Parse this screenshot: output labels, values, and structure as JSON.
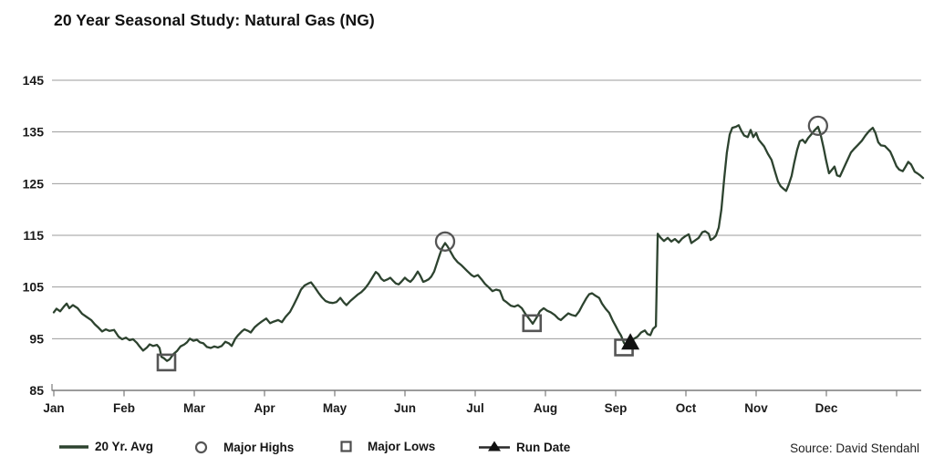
{
  "title": "20 Year Seasonal Study: Natural Gas (NG)",
  "source": "Source: David Stendahl",
  "legend": [
    {
      "label": "20 Yr. Avg",
      "marker": "line"
    },
    {
      "label": "Major Highs",
      "marker": "circle"
    },
    {
      "label": "Major Lows",
      "marker": "square"
    },
    {
      "label": "Run Date",
      "marker": "triangle"
    }
  ],
  "colors": {
    "line": "#2d432f",
    "grid": "#9b9b9b",
    "axis": "#7a7a7a",
    "text": "#1a1a1a",
    "marker_outline": "#555555",
    "run_date": "#111111"
  },
  "chart_data": {
    "type": "line",
    "title": "20 Year Seasonal Study: Natural Gas (NG)",
    "xlabel": "",
    "ylabel": "",
    "ylim": [
      85,
      145
    ],
    "y_ticks": [
      85,
      95,
      105,
      115,
      125,
      135,
      145
    ],
    "grid": true,
    "legend_position": "bottom",
    "x_months": [
      "Jan",
      "Feb",
      "Mar",
      "Apr",
      "May",
      "Jun",
      "Jul",
      "Aug",
      "Sep",
      "Oct",
      "Nov",
      "Dec"
    ],
    "x_unit": "day_of_year",
    "series_name": "20 Yr. Avg",
    "points": [
      [
        0,
        100.1
      ],
      [
        1.1,
        100.8
      ],
      [
        2.7,
        100.3
      ],
      [
        4.2,
        101.2
      ],
      [
        5.4,
        101.8
      ],
      [
        6.5,
        100.9
      ],
      [
        8,
        101.5
      ],
      [
        10,
        100.9
      ],
      [
        11.9,
        99.8
      ],
      [
        13.8,
        99.2
      ],
      [
        15.7,
        98.6
      ],
      [
        17.2,
        97.8
      ],
      [
        18.8,
        97.1
      ],
      [
        20.3,
        96.4
      ],
      [
        21.8,
        96.8
      ],
      [
        23.4,
        96.5
      ],
      [
        25.3,
        96.7
      ],
      [
        27.2,
        95.4
      ],
      [
        28.7,
        94.9
      ],
      [
        30.3,
        95.2
      ],
      [
        31.8,
        94.7
      ],
      [
        33.3,
        94.9
      ],
      [
        34.9,
        94.2
      ],
      [
        36,
        93.5
      ],
      [
        37.5,
        92.7
      ],
      [
        39.1,
        93.3
      ],
      [
        40.2,
        93.9
      ],
      [
        41.7,
        93.6
      ],
      [
        43.3,
        93.8
      ],
      [
        44.4,
        93.2
      ],
      [
        45.2,
        91.5
      ],
      [
        46.3,
        91.2
      ],
      [
        47.5,
        90.7
      ],
      [
        48.6,
        91
      ],
      [
        50.2,
        92
      ],
      [
        51.7,
        92.6
      ],
      [
        53.2,
        93.5
      ],
      [
        54.8,
        93.9
      ],
      [
        55.9,
        94.3
      ],
      [
        57.1,
        95
      ],
      [
        58.6,
        94.6
      ],
      [
        60.1,
        94.8
      ],
      [
        61.3,
        94.3
      ],
      [
        62.8,
        94.1
      ],
      [
        64.3,
        93.4
      ],
      [
        65.9,
        93.2
      ],
      [
        67.4,
        93.5
      ],
      [
        68.9,
        93.3
      ],
      [
        70.5,
        93.6
      ],
      [
        72,
        94.4
      ],
      [
        73.5,
        94.1
      ],
      [
        74.7,
        93.6
      ],
      [
        76.2,
        95
      ],
      [
        77.4,
        95.7
      ],
      [
        78.9,
        96.4
      ],
      [
        80,
        96.8
      ],
      [
        81.6,
        96.5
      ],
      [
        82.7,
        96.2
      ],
      [
        84.3,
        97.2
      ],
      [
        85.8,
        97.8
      ],
      [
        87.3,
        98.3
      ],
      [
        89.2,
        98.9
      ],
      [
        90.8,
        98
      ],
      [
        92.3,
        98.3
      ],
      [
        94.2,
        98.6
      ],
      [
        95.8,
        98.2
      ],
      [
        97.3,
        99.2
      ],
      [
        99.2,
        100.2
      ],
      [
        100.7,
        101.5
      ],
      [
        102.3,
        103
      ],
      [
        103.8,
        104.5
      ],
      [
        105.3,
        105.3
      ],
      [
        106.9,
        105.7
      ],
      [
        108,
        105.9
      ],
      [
        109.5,
        105
      ],
      [
        111.1,
        103.9
      ],
      [
        112.6,
        103
      ],
      [
        114.1,
        102.3
      ],
      [
        115.7,
        102
      ],
      [
        117.2,
        101.9
      ],
      [
        118.7,
        102.1
      ],
      [
        120.3,
        102.9
      ],
      [
        121.8,
        102
      ],
      [
        122.9,
        101.5
      ],
      [
        124.5,
        102.3
      ],
      [
        126,
        102.9
      ],
      [
        127.5,
        103.5
      ],
      [
        129.1,
        104
      ],
      [
        130.6,
        104.7
      ],
      [
        132.1,
        105.6
      ],
      [
        133.7,
        106.8
      ],
      [
        135.2,
        107.9
      ],
      [
        136.3,
        107.5
      ],
      [
        137.5,
        106.6
      ],
      [
        138.6,
        106.2
      ],
      [
        140.2,
        106.5
      ],
      [
        141.3,
        106.8
      ],
      [
        142.5,
        106.2
      ],
      [
        143.6,
        105.7
      ],
      [
        144.8,
        105.5
      ],
      [
        145.9,
        106
      ],
      [
        147.4,
        106.8
      ],
      [
        148.6,
        106.3
      ],
      [
        149.7,
        106
      ],
      [
        150.9,
        106.6
      ],
      [
        152,
        107.4
      ],
      [
        152.8,
        108
      ],
      [
        153.9,
        107.2
      ],
      [
        155.1,
        106
      ],
      [
        156.2,
        106.2
      ],
      [
        157.4,
        106.5
      ],
      [
        158.5,
        107
      ],
      [
        159.7,
        108
      ],
      [
        160.8,
        109.5
      ],
      [
        162,
        111.2
      ],
      [
        163.1,
        112.6
      ],
      [
        164.3,
        113.5
      ],
      [
        165.4,
        112.8
      ],
      [
        166.6,
        111.8
      ],
      [
        168.1,
        110.6
      ],
      [
        169.6,
        109.8
      ],
      [
        171.2,
        109.2
      ],
      [
        172.7,
        108.5
      ],
      [
        173.8,
        108
      ],
      [
        175.4,
        107.3
      ],
      [
        176.5,
        107
      ],
      [
        178.1,
        107.3
      ],
      [
        179.6,
        106.5
      ],
      [
        181.1,
        105.6
      ],
      [
        182.7,
        104.9
      ],
      [
        184.2,
        104.2
      ],
      [
        185.7,
        104.5
      ],
      [
        187.3,
        104.3
      ],
      [
        188.8,
        102.5
      ],
      [
        190.3,
        102
      ],
      [
        191.9,
        101.4
      ],
      [
        193.4,
        101.2
      ],
      [
        194.9,
        101.5
      ],
      [
        196.5,
        100.9
      ],
      [
        198,
        99.8
      ],
      [
        199.5,
        98.9
      ],
      [
        201.1,
        97.9
      ],
      [
        202.6,
        99
      ],
      [
        204.1,
        100.3
      ],
      [
        205.7,
        100.9
      ],
      [
        207.2,
        100.4
      ],
      [
        208.7,
        100.1
      ],
      [
        210.3,
        99.6
      ],
      [
        211.8,
        98.9
      ],
      [
        212.9,
        98.6
      ],
      [
        214.5,
        99.3
      ],
      [
        216,
        99.9
      ],
      [
        217.5,
        99.6
      ],
      [
        219.1,
        99.4
      ],
      [
        220.6,
        100.3
      ],
      [
        222.1,
        101.6
      ],
      [
        223.7,
        102.9
      ],
      [
        224.8,
        103.6
      ],
      [
        226,
        103.8
      ],
      [
        227.5,
        103.3
      ],
      [
        229,
        102.9
      ],
      [
        230.2,
        101.8
      ],
      [
        231.7,
        100.8
      ],
      [
        233.2,
        100
      ],
      [
        234.8,
        98.4
      ],
      [
        235.9,
        97.5
      ],
      [
        237.1,
        96.4
      ],
      [
        238.2,
        95.6
      ],
      [
        239.4,
        94.2
      ],
      [
        240.5,
        93.7
      ],
      [
        241.7,
        94.3
      ],
      [
        242.8,
        94.8
      ],
      [
        244,
        95.1
      ],
      [
        245.1,
        95.4
      ],
      [
        246.6,
        96.2
      ],
      [
        248.2,
        96.6
      ],
      [
        249.3,
        95.9
      ],
      [
        250.5,
        95.7
      ],
      [
        251.6,
        96.9
      ],
      [
        252.8,
        97.4
      ],
      [
        253.6,
        115.3
      ],
      [
        254.7,
        114.6
      ],
      [
        256.2,
        113.9
      ],
      [
        257.8,
        114.5
      ],
      [
        259.3,
        113.8
      ],
      [
        260.8,
        114.3
      ],
      [
        262.4,
        113.6
      ],
      [
        263.9,
        114.4
      ],
      [
        265.4,
        114.9
      ],
      [
        266.6,
        115.2
      ],
      [
        267.7,
        113.5
      ],
      [
        269.2,
        114
      ],
      [
        270.8,
        114.5
      ],
      [
        272.3,
        115.6
      ],
      [
        273.5,
        115.8
      ],
      [
        275,
        115.3
      ],
      [
        275.8,
        114.1
      ],
      [
        276.9,
        114.4
      ],
      [
        278,
        114.9
      ],
      [
        279.2,
        116.5
      ],
      [
        280.3,
        120
      ],
      [
        281.5,
        126
      ],
      [
        282.6,
        131
      ],
      [
        283.8,
        134.5
      ],
      [
        284.9,
        135.8
      ],
      [
        286.4,
        136
      ],
      [
        287.6,
        136.3
      ],
      [
        288.7,
        135.2
      ],
      [
        289.9,
        134.3
      ],
      [
        291.4,
        134
      ],
      [
        292.6,
        135.4
      ],
      [
        293.7,
        134
      ],
      [
        294.9,
        134.8
      ],
      [
        296,
        133.5
      ],
      [
        297.2,
        132.8
      ],
      [
        298.3,
        132.2
      ],
      [
        299.8,
        130.8
      ],
      [
        301.4,
        129.6
      ],
      [
        302.9,
        127.2
      ],
      [
        304.1,
        125.4
      ],
      [
        305.2,
        124.5
      ],
      [
        306.4,
        124
      ],
      [
        307.5,
        123.6
      ],
      [
        308.6,
        124.8
      ],
      [
        309.8,
        126.5
      ],
      [
        310.9,
        129
      ],
      [
        312.1,
        131.5
      ],
      [
        313.2,
        133.2
      ],
      [
        314.4,
        133.5
      ],
      [
        315.5,
        132.9
      ],
      [
        316.7,
        133.8
      ],
      [
        317.8,
        134.4
      ],
      [
        319.4,
        135.3
      ],
      [
        320.9,
        136
      ],
      [
        322,
        134.5
      ],
      [
        323.2,
        132
      ],
      [
        324.3,
        129.5
      ],
      [
        325.5,
        127
      ],
      [
        326.6,
        127.6
      ],
      [
        327.8,
        128.3
      ],
      [
        328.9,
        126.6
      ],
      [
        330.1,
        126.4
      ],
      [
        331.6,
        127.9
      ],
      [
        333.1,
        129.4
      ],
      [
        334.7,
        131
      ],
      [
        336.2,
        131.8
      ],
      [
        337.7,
        132.5
      ],
      [
        339.3,
        133.3
      ],
      [
        340.8,
        134.3
      ],
      [
        342.4,
        135.2
      ],
      [
        343.9,
        135.8
      ],
      [
        345,
        134.8
      ],
      [
        346.2,
        133
      ],
      [
        347.3,
        132.4
      ],
      [
        348.9,
        132.3
      ],
      [
        350,
        131.8
      ],
      [
        351.2,
        131.2
      ],
      [
        352.3,
        130.1
      ],
      [
        353.8,
        128.4
      ],
      [
        355,
        127.7
      ],
      [
        356.5,
        127.4
      ],
      [
        357.7,
        128.3
      ],
      [
        358.8,
        129.2
      ],
      [
        360,
        128.7
      ],
      [
        361.5,
        127.3
      ],
      [
        362.6,
        127
      ],
      [
        363.8,
        126.6
      ],
      [
        365,
        126.1
      ]
    ],
    "major_highs": [
      [
        164.3,
        113.8
      ],
      [
        320.9,
        136.2
      ]
    ],
    "major_lows": [
      [
        47.3,
        90.4
      ],
      [
        200.8,
        98.0
      ],
      [
        239.4,
        93.3
      ]
    ],
    "run_date": [
      [
        242.1,
        94.4
      ]
    ]
  }
}
